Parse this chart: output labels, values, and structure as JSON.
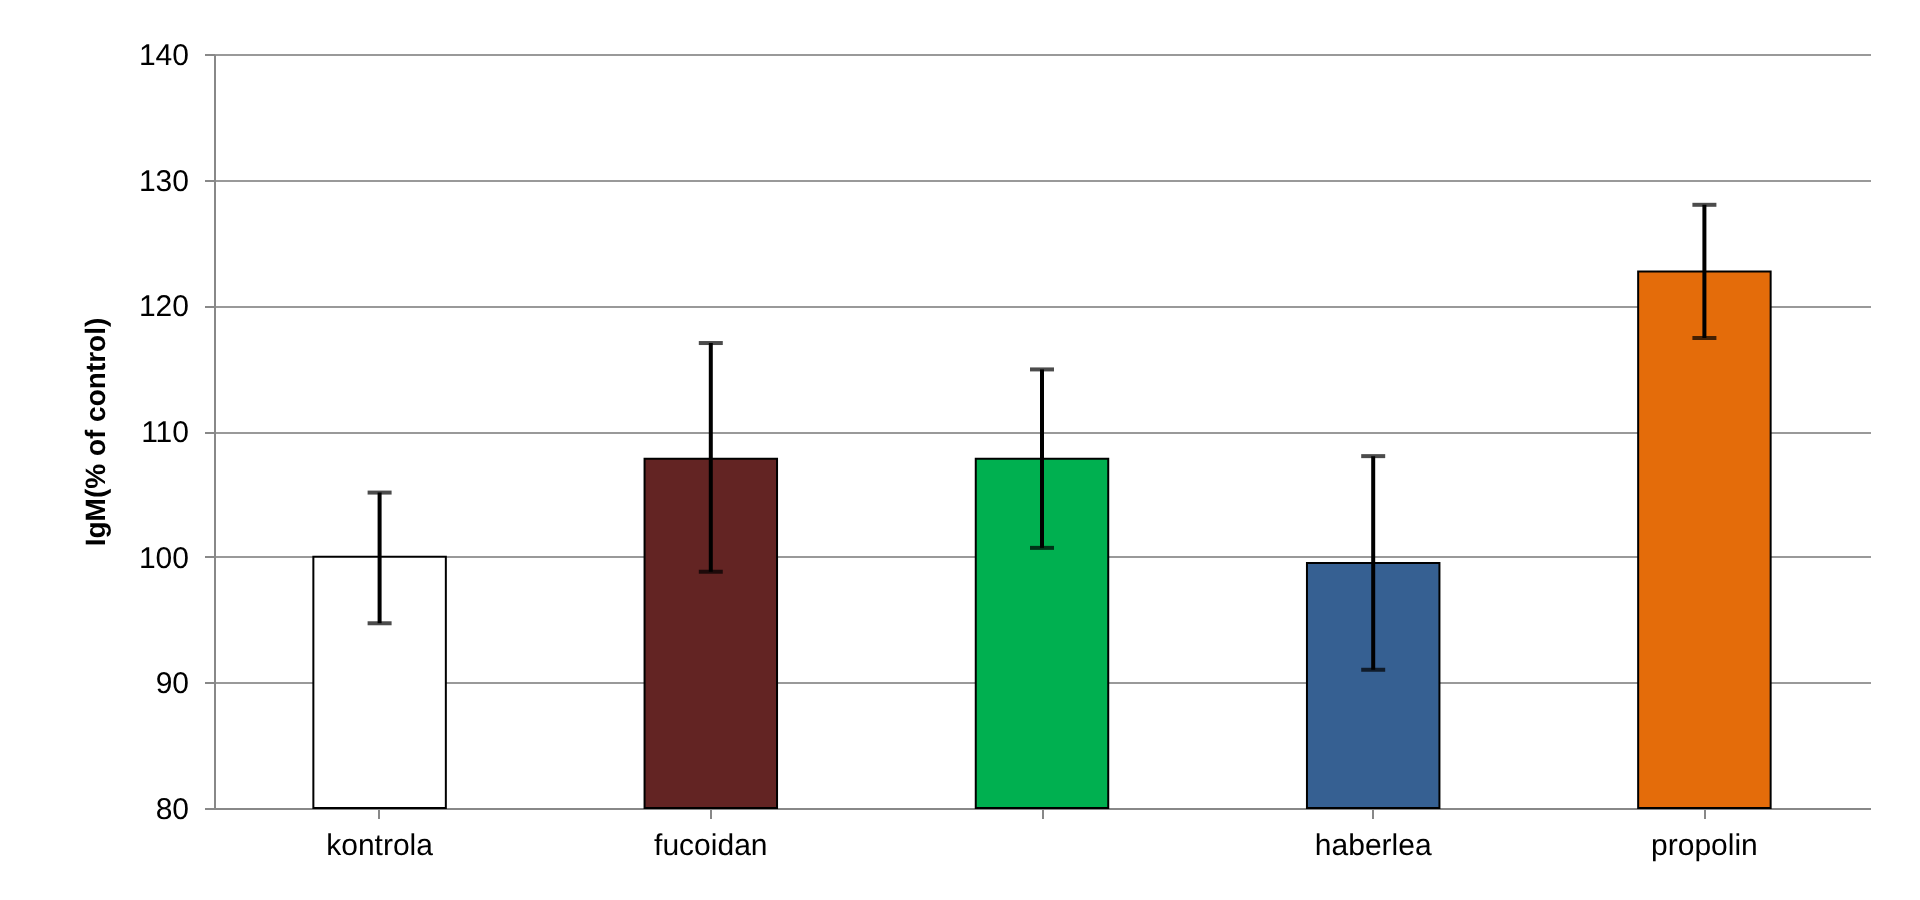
{
  "chart_data": {
    "type": "bar",
    "ylabel": "IgM(% of control)",
    "categories": [
      "kontrola",
      "fucoidan",
      null,
      "haberlea",
      "propolin"
    ],
    "values": [
      100,
      107.8,
      107.8,
      99.5,
      122.7
    ],
    "colors": [
      "#ffffff",
      "#632423",
      "#00b050",
      "#366092",
      "#e46c0a"
    ],
    "errors": [
      [
        94.7,
        105.1
      ],
      [
        98.8,
        117.0
      ],
      [
        100.7,
        114.9
      ],
      [
        91.0,
        108.0
      ],
      [
        117.4,
        128.0
      ]
    ],
    "ylim": [
      80,
      140
    ],
    "yticks": [
      80,
      90,
      100,
      110,
      120,
      130,
      140
    ],
    "grid": "y"
  }
}
